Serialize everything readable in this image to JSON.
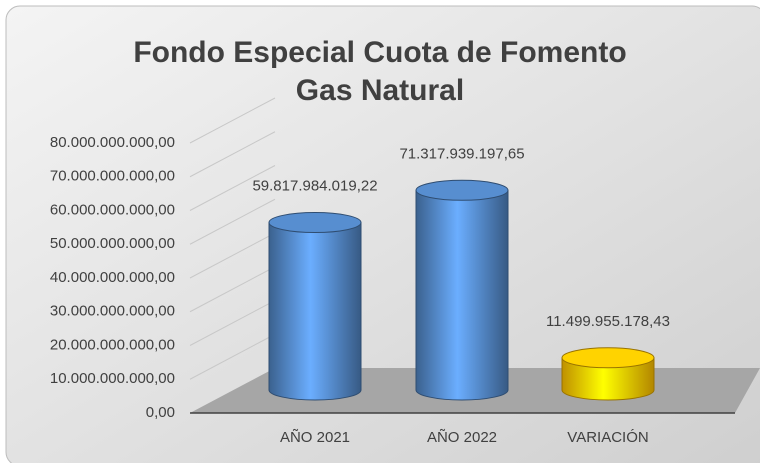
{
  "chart_data": {
    "type": "bar3d",
    "title": "Fondo Especial Cuota de Fomento Gas Natural",
    "categories": [
      "AÑO 2021",
      "AÑO 2022",
      "VARIACIÓN"
    ],
    "values": [
      59817984019.22,
      71317939197.65,
      11499955178.43
    ],
    "value_labels": [
      "59.817.984.019,22",
      "71.317.939.197,65",
      "11.499.955.178,43"
    ],
    "colors": [
      "#4f81bd",
      "#4f81bd",
      "#ffc000"
    ],
    "ylim": [
      0,
      80000000000
    ],
    "yticks": [
      {
        "value": 0,
        "label": "0,00"
      },
      {
        "value": 10000000000,
        "label": "10.000.000.000,00"
      },
      {
        "value": 20000000000,
        "label": "20.000.000.000,00"
      },
      {
        "value": 30000000000,
        "label": "30.000.000.000,00"
      },
      {
        "value": 40000000000,
        "label": "40.000.000.000,00"
      },
      {
        "value": 50000000000,
        "label": "50.000.000.000,00"
      },
      {
        "value": 60000000000,
        "label": "60.000.000.000,00"
      },
      {
        "value": 70000000000,
        "label": "70.000.000.000,00"
      },
      {
        "value": 80000000000,
        "label": "80.000.000.000,00"
      }
    ],
    "grid": true
  }
}
